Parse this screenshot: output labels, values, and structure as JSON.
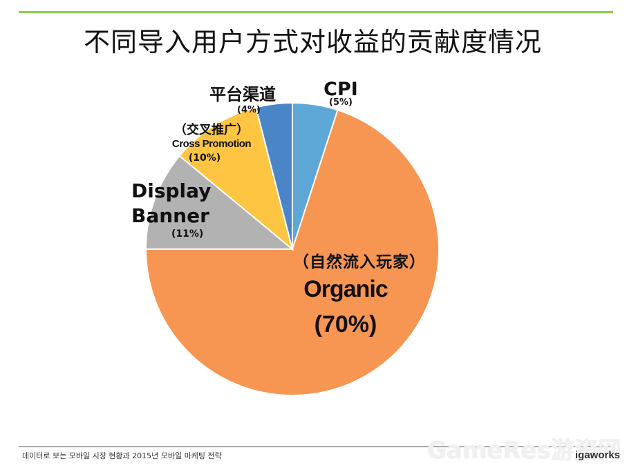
{
  "title": "不同导入用户方式对收益的贡献度情况",
  "footer": "데이터로 보는 모바일 시장 현황과 2015년 모바일 마케팅 전략",
  "watermark": "GameRes游资网",
  "logo": "igaworks",
  "chart_data": {
    "type": "pie",
    "slices": [
      {
        "label_lines": [
          "CPI"
        ],
        "pct_text": "(5%)",
        "value": 5,
        "color": "#5ea8d8"
      },
      {
        "label_lines": [
          "（自然流入玩家）",
          "Organic"
        ],
        "pct_text": "(70%)",
        "value": 70,
        "color": "#f79552"
      },
      {
        "label_lines": [
          "Display",
          "Banner"
        ],
        "pct_text": "(11%)",
        "value": 11,
        "color": "#b2b2b2"
      },
      {
        "label_lines": [
          "（交叉推广）",
          "Cross Promotion"
        ],
        "pct_text": "(10%)",
        "value": 10,
        "color": "#fdc541"
      },
      {
        "label_lines": [
          "平台渠道"
        ],
        "pct_text": "(4%)",
        "value": 4,
        "color": "#4a85c8"
      }
    ]
  }
}
